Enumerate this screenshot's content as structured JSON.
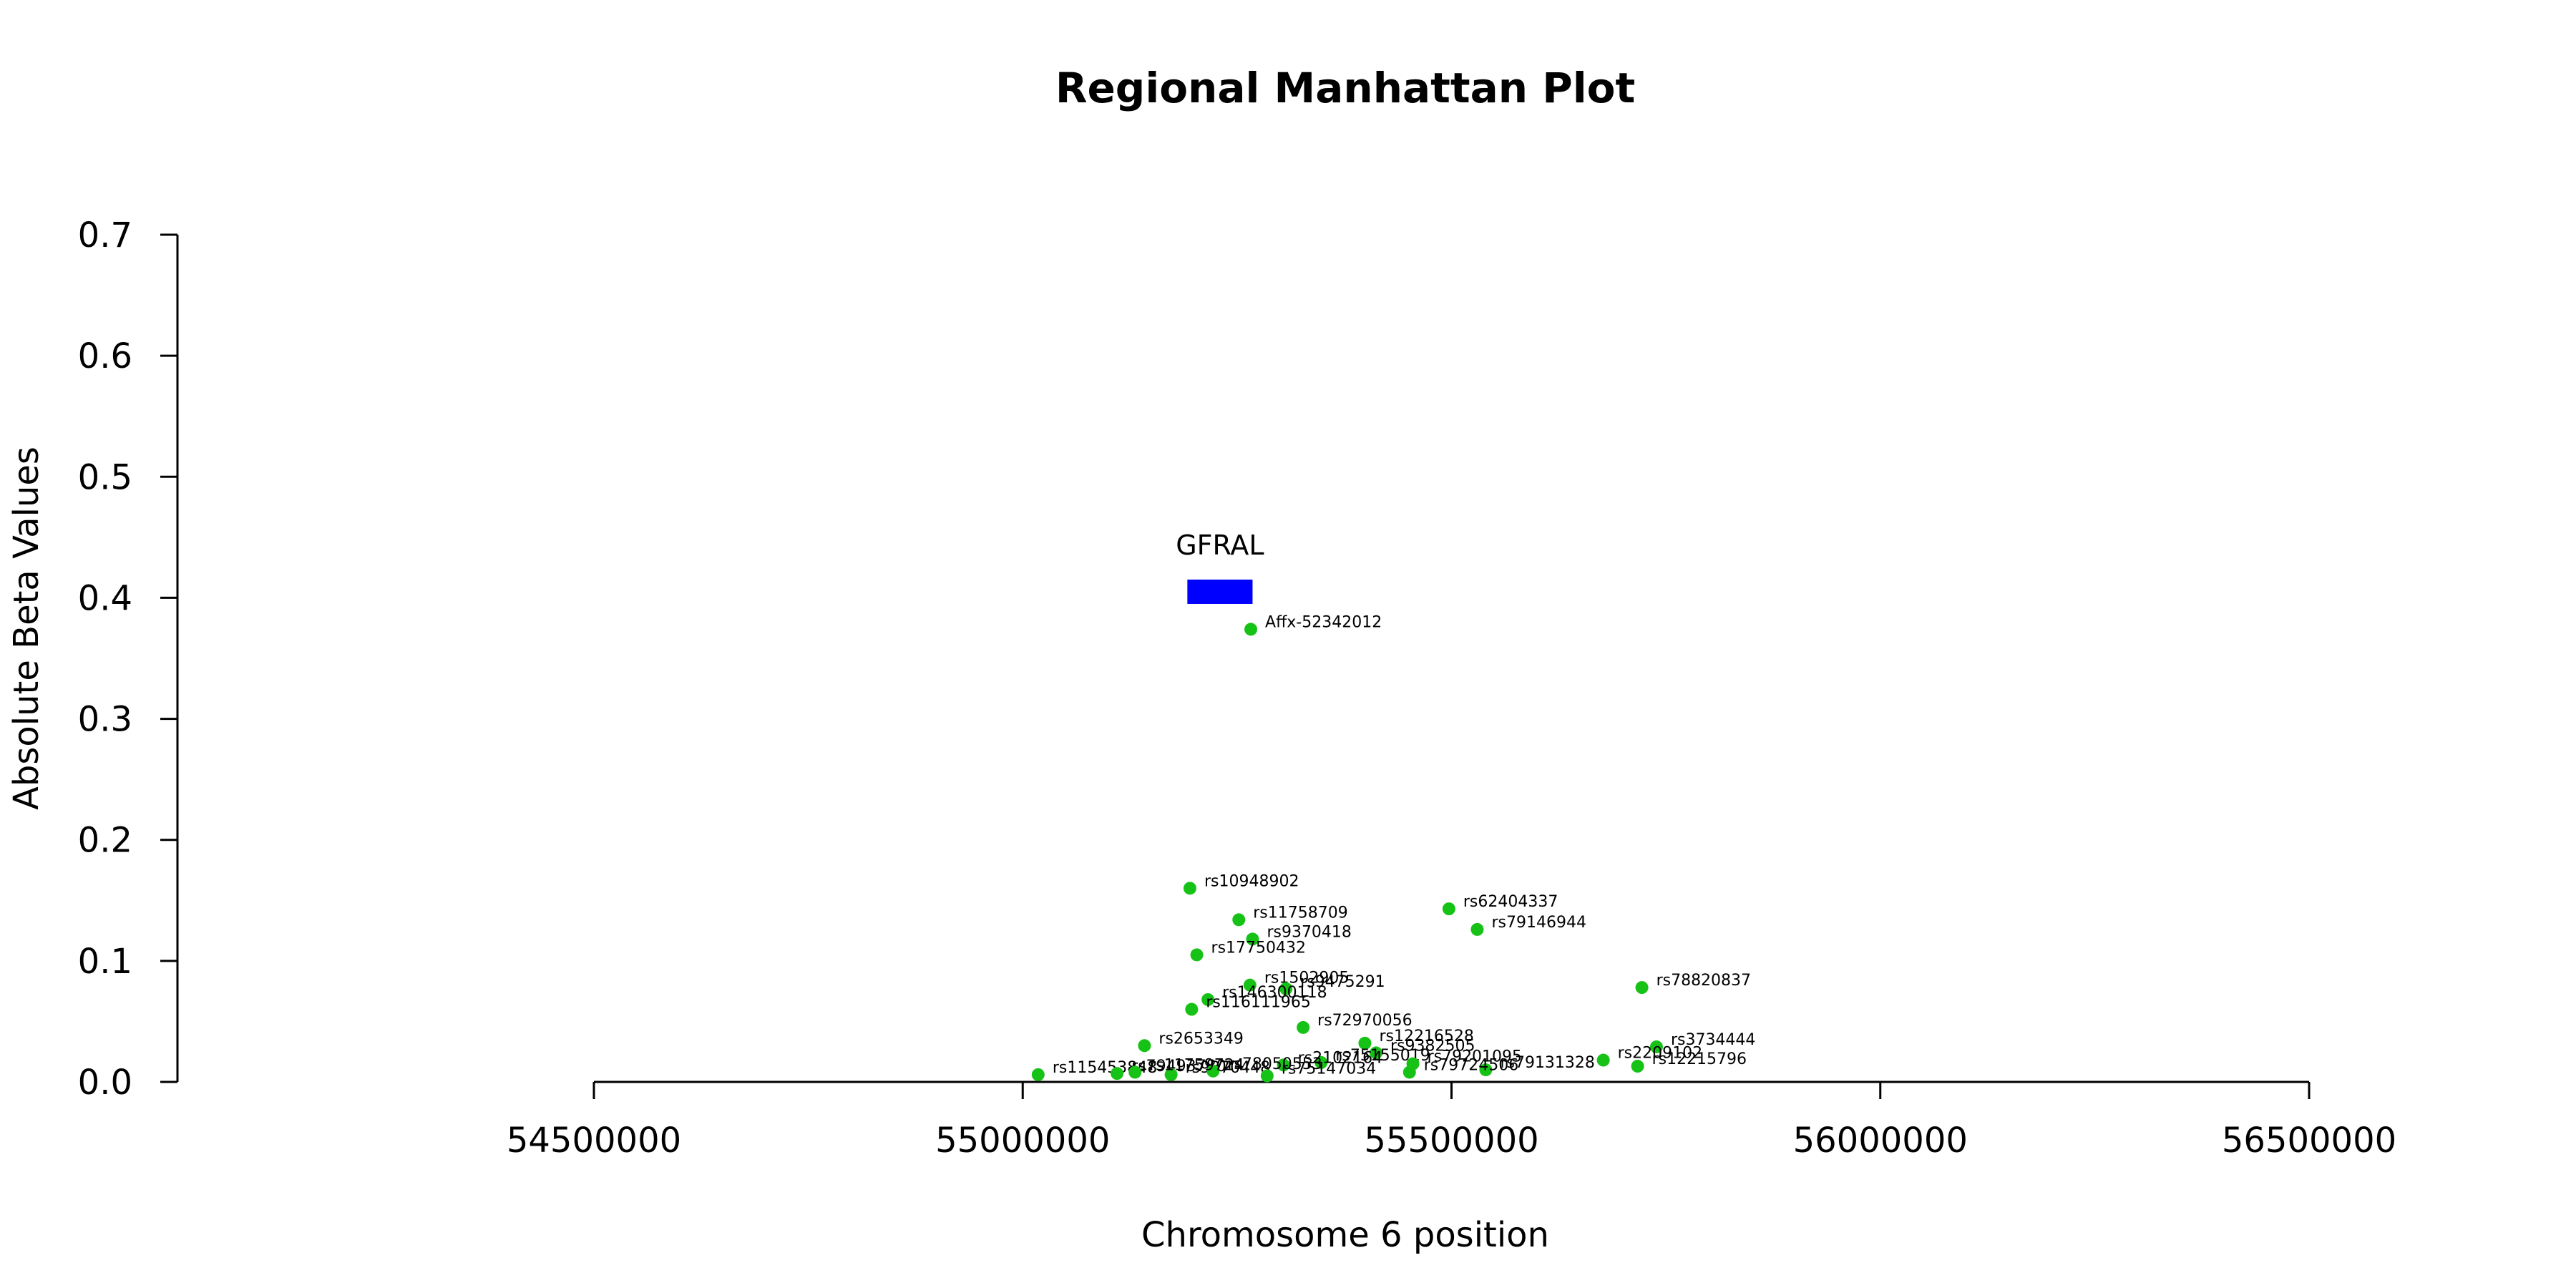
{
  "chart_data": {
    "type": "scatter",
    "title": "Regional Manhattan Plot",
    "xlabel": "Chromosome 6 position",
    "ylabel": "Absolute Beta Values",
    "xlim": [
      54500000,
      56500000
    ],
    "ylim": [
      0,
      0.7
    ],
    "x_ticks": [
      54500000,
      55000000,
      55500000,
      56000000,
      56500000
    ],
    "y_ticks": [
      0.0,
      0.1,
      0.2,
      0.3,
      0.4,
      0.5,
      0.6,
      0.7
    ],
    "grid": false,
    "point_color": "#17c217",
    "gene_color": "#0000ff",
    "genes": [
      {
        "name": "GFRAL",
        "start": 55192000,
        "end": 55268000,
        "y": 0.405
      }
    ],
    "points": [
      {
        "label": "Affx-52342012",
        "x": 55266000,
        "y": 0.374
      },
      {
        "label": "rs10948902",
        "x": 55195000,
        "y": 0.16
      },
      {
        "label": "rs62404337",
        "x": 55497000,
        "y": 0.143
      },
      {
        "label": "rs11758709",
        "x": 55252000,
        "y": 0.134
      },
      {
        "label": "rs79146944",
        "x": 55530000,
        "y": 0.126
      },
      {
        "label": "rs9370418",
        "x": 55268000,
        "y": 0.118
      },
      {
        "label": "rs17750432",
        "x": 55203000,
        "y": 0.105
      },
      {
        "label": "rs78820837",
        "x": 55722000,
        "y": 0.078
      },
      {
        "label": "rs1502905",
        "x": 55265000,
        "y": 0.08
      },
      {
        "label": "rs9475291",
        "x": 55307000,
        "y": 0.077
      },
      {
        "label": "rs146300118",
        "x": 55216000,
        "y": 0.068
      },
      {
        "label": "rs116111965",
        "x": 55197000,
        "y": 0.06
      },
      {
        "label": "rs72970056",
        "x": 55327000,
        "y": 0.045
      },
      {
        "label": "rs12216528",
        "x": 55399000,
        "y": 0.032
      },
      {
        "label": "rs3734444",
        "x": 55739000,
        "y": 0.029
      },
      {
        "label": "rs2653349",
        "x": 55142000,
        "y": 0.03
      },
      {
        "label": "rs9382505",
        "x": 55412000,
        "y": 0.024
      },
      {
        "label": "rs2209102",
        "x": 55677000,
        "y": 0.018
      },
      {
        "label": "rs75155019",
        "x": 55348000,
        "y": 0.016
      },
      {
        "label": "rs12215796",
        "x": 55717000,
        "y": 0.013
      },
      {
        "label": "rs2102164",
        "x": 55304000,
        "y": 0.014
      },
      {
        "label": "rs79201095",
        "x": 55455000,
        "y": 0.015
      },
      {
        "label": "rs79131328",
        "x": 55540000,
        "y": 0.01
      },
      {
        "label": "rs79724506",
        "x": 55451000,
        "y": 0.008
      },
      {
        "label": "rs115453848",
        "x": 55018000,
        "y": 0.006
      },
      {
        "label": "rs79493780",
        "x": 55110000,
        "y": 0.007
      },
      {
        "label": "rs9370448",
        "x": 55173000,
        "y": 0.006
      },
      {
        "label": "rs75147034",
        "x": 55285000,
        "y": 0.005
      },
      {
        "label": "rs78050553",
        "x": 55222000,
        "y": 0.009
      },
      {
        "label": "rs11759724",
        "x": 55131000,
        "y": 0.008
      }
    ]
  }
}
